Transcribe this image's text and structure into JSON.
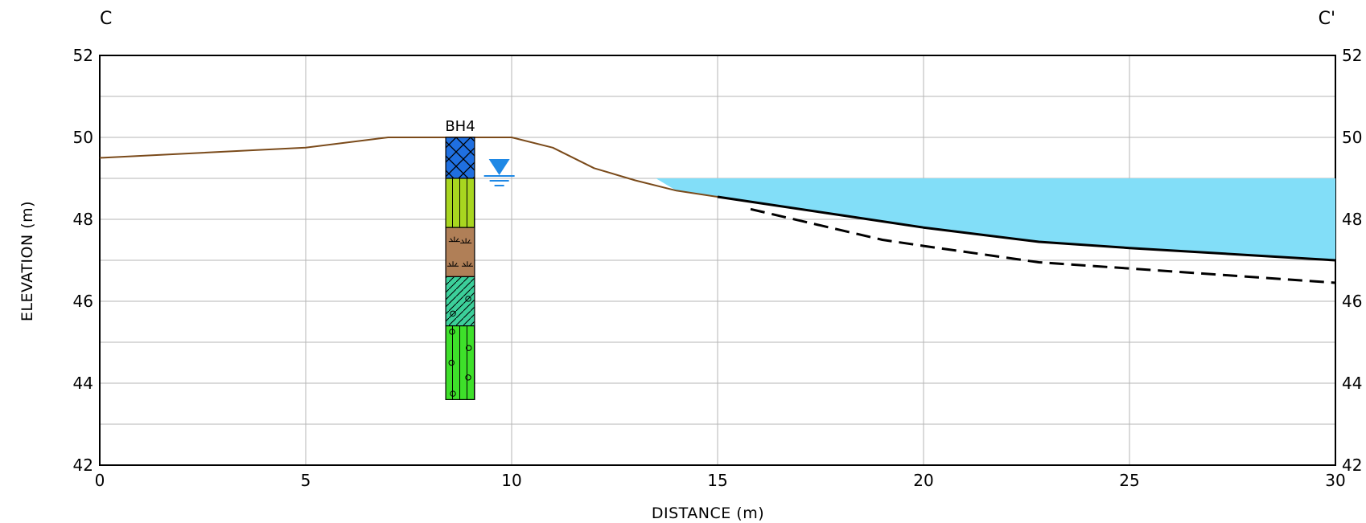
{
  "section": {
    "left_label": "C",
    "right_label": "C'"
  },
  "axes": {
    "x_label": "DISTANCE (m)",
    "y_label": "ELEVATION (m)",
    "x_range": [
      0,
      30
    ],
    "y_range": [
      42,
      52
    ],
    "x_ticks": [
      "0",
      "5",
      "10",
      "15",
      "20",
      "25",
      "30"
    ],
    "y_ticks": [
      "42",
      "44",
      "46",
      "48",
      "50",
      "52"
    ],
    "x_ticks_num": [
      0,
      5,
      10,
      15,
      20,
      25,
      30
    ],
    "y_ticks_num": [
      42,
      44,
      46,
      48,
      50,
      52
    ],
    "x_grid": [
      0,
      5,
      10,
      15,
      20,
      25,
      30
    ],
    "y_grid": [
      42,
      43,
      44,
      45,
      46,
      47,
      48,
      49,
      50,
      51,
      52
    ],
    "grid": true
  },
  "borehole": {
    "label": "BH4",
    "x_from": 8.4,
    "x_to": 9.1,
    "layers": [
      {
        "top": 50.0,
        "bottom": 49.0,
        "color": "#1f6fe0",
        "pattern": "crosshatch"
      },
      {
        "top": 49.0,
        "bottom": 47.8,
        "color": "#a8d620",
        "pattern": "vertical-lines"
      },
      {
        "top": 47.8,
        "bottom": 46.6,
        "color": "#b07f57",
        "pattern": "roots"
      },
      {
        "top": 46.6,
        "bottom": 45.4,
        "color": "#3ccf9a",
        "pattern": "diagonal-circles"
      },
      {
        "top": 45.4,
        "bottom": 43.6,
        "color": "#3ee02a",
        "pattern": "circles-dots"
      }
    ]
  },
  "water_table": {
    "x": 9.7,
    "elevation": 49.0,
    "symbol": "water-table-icon",
    "color": "#1e88e5"
  },
  "chart_data": {
    "type": "line",
    "x_range": [
      0,
      30
    ],
    "y_range": [
      42,
      52
    ],
    "series": [
      {
        "style": "solid",
        "color": "#7a4a1a",
        "points": [
          [
            0,
            49.5
          ],
          [
            5,
            49.75
          ],
          [
            7,
            50.0
          ],
          [
            10,
            50.0
          ],
          [
            11,
            49.75
          ],
          [
            12,
            49.25
          ],
          [
            13,
            48.95
          ],
          [
            14,
            48.7
          ],
          [
            15,
            48.55
          ]
        ]
      },
      {
        "style": "solid",
        "color": "#000000",
        "points": [
          [
            15,
            48.55
          ],
          [
            18,
            48.1
          ],
          [
            20,
            47.8
          ],
          [
            22.8,
            47.45
          ],
          [
            25,
            47.3
          ],
          [
            30,
            47.0
          ]
        ]
      },
      {
        "style": "dashed",
        "color": "#000000",
        "points": [
          [
            15.8,
            48.25
          ],
          [
            17.5,
            47.85
          ],
          [
            19,
            47.5
          ],
          [
            20,
            47.35
          ],
          [
            22.8,
            46.95
          ],
          [
            25,
            46.8
          ],
          [
            30,
            46.45
          ]
        ]
      }
    ],
    "water_body": {
      "color": "#82def8",
      "level": 49.0,
      "polygon": [
        [
          13.5,
          49.0
        ],
        [
          30,
          49.0
        ],
        [
          30,
          47.0
        ],
        [
          25,
          47.3
        ],
        [
          22.8,
          47.45
        ],
        [
          20,
          47.8
        ],
        [
          18,
          48.1
        ],
        [
          15,
          48.55
        ],
        [
          14,
          48.7
        ]
      ]
    }
  }
}
